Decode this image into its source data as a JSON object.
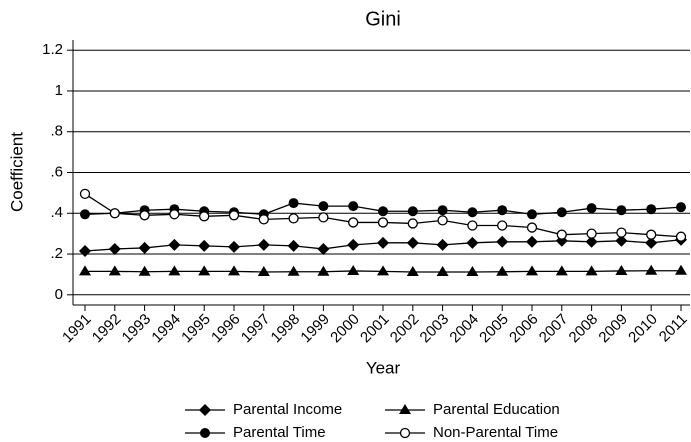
{
  "chart_data": {
    "type": "line",
    "title": "Gini",
    "x_label": "Year",
    "y_label": "Coefficient",
    "categories": [
      "1991",
      "1992",
      "1993",
      "1994",
      "1995",
      "1996",
      "1997",
      "1998",
      "1999",
      "2000",
      "2001",
      "2002",
      "2003",
      "2004",
      "2005",
      "2006",
      "2007",
      "2008",
      "2009",
      "2010",
      "2011"
    ],
    "ylim": [
      -0.05,
      1.25
    ],
    "yticks": [
      0,
      {
        "value": 0.2,
        "label": ".2"
      },
      {
        "value": 0.4,
        "label": ".4"
      },
      {
        "value": 0.6,
        "label": ".6"
      },
      {
        "value": 0.8,
        "label": ".8"
      },
      1,
      1.2
    ],
    "grid": true,
    "series": [
      {
        "name": "Parental Income",
        "color": "#000000",
        "marker": "diamond",
        "values": [
          0.215,
          0.225,
          0.23,
          0.245,
          0.24,
          0.235,
          0.245,
          0.24,
          0.225,
          0.245,
          0.255,
          0.255,
          0.245,
          0.255,
          0.26,
          0.26,
          0.265,
          0.26,
          0.265,
          0.255,
          0.27
        ]
      },
      {
        "name": "Parental Education",
        "color": "#000000",
        "marker": "triangle",
        "values": [
          0.115,
          0.115,
          0.113,
          0.115,
          0.115,
          0.115,
          0.112,
          0.113,
          0.113,
          0.117,
          0.115,
          0.112,
          0.112,
          0.112,
          0.113,
          0.115,
          0.115,
          0.115,
          0.117,
          0.118,
          0.118
        ]
      },
      {
        "name": "Parental Time",
        "color": "#000000",
        "marker": "circle",
        "values": [
          0.395,
          0.4,
          0.415,
          0.42,
          0.41,
          0.405,
          0.395,
          0.45,
          0.435,
          0.435,
          0.41,
          0.41,
          0.415,
          0.405,
          0.415,
          0.395,
          0.405,
          0.425,
          0.415,
          0.42,
          0.43
        ]
      },
      {
        "name": "Non-Parental Time",
        "color": "#000000",
        "marker": "hollow-circle",
        "values": [
          0.495,
          0.4,
          0.39,
          0.395,
          0.385,
          0.39,
          0.37,
          0.375,
          0.38,
          0.355,
          0.355,
          0.35,
          0.365,
          0.34,
          0.34,
          0.33,
          0.295,
          0.3,
          0.305,
          0.295,
          0.285
        ]
      }
    ]
  }
}
